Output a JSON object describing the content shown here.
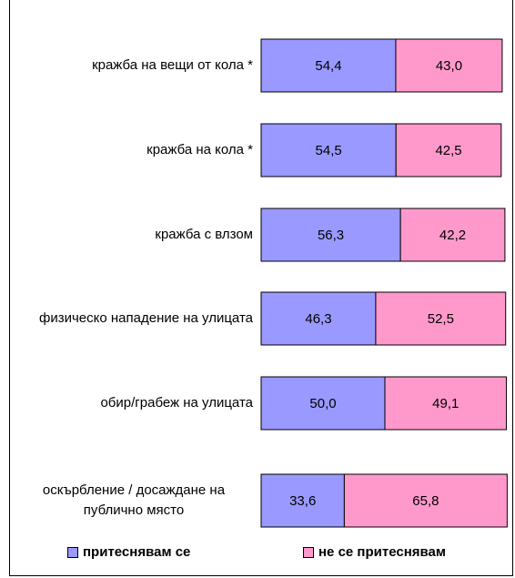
{
  "chart_data": {
    "type": "stacked-bar-horizontal",
    "categories": [
      "кражба на вещи от кола *",
      "кражба на кола *",
      "кражба с влзом",
      "физическо нападение на улицата",
      "обир/грабеж на улицата",
      "оскърбление / досаждане на публично място"
    ],
    "series": [
      {
        "name": "притеснявам се",
        "color": "#9999ff",
        "values": [
          54.4,
          54.5,
          56.3,
          46.3,
          50.0,
          33.6
        ],
        "value_labels": [
          "54,4",
          "54,5",
          "56,3",
          "46,3",
          "50,0",
          "33,6"
        ]
      },
      {
        "name": "не се притеснявам",
        "color": "#ff99cc",
        "values": [
          43.0,
          42.5,
          42.2,
          52.5,
          49.1,
          65.8
        ],
        "value_labels": [
          "43,0",
          "42,5",
          "42,2",
          "52,5",
          "49,1",
          "65,8"
        ]
      }
    ],
    "xlim": [
      0,
      100
    ]
  }
}
